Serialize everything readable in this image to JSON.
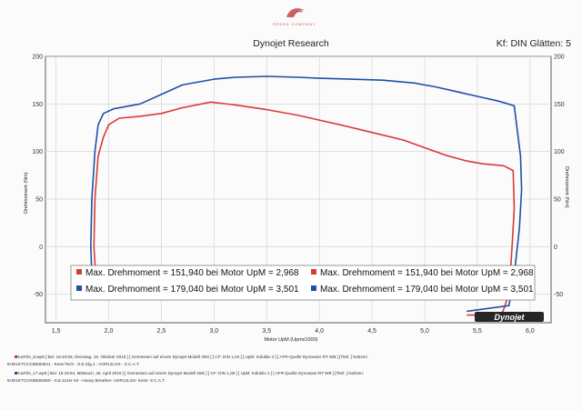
{
  "header": {
    "logo_text": "SPEED COMPANY",
    "title": "Dynojet Research",
    "smoothing": "Kf: DIN Glätten: 5"
  },
  "colors": {
    "run1": "#d83a3a",
    "run2": "#1f4fa8"
  },
  "chart_data": {
    "type": "line",
    "title": "",
    "xlabel": "Motor UpM (Upmx1000)",
    "ylabel": "Drehmoment (Nm)",
    "ylabel_right": "Drehmoment (Nm)",
    "xlim": [
      1.4,
      6.2
    ],
    "ylim": [
      -80,
      200
    ],
    "x_ticks": [
      "1,5",
      "2,0",
      "2,5",
      "3,0",
      "3,5",
      "4,0",
      "4,5",
      "5,0",
      "5,5",
      "6,0"
    ],
    "y_ticks": [
      "-50",
      "0",
      "50",
      "100",
      "150",
      "200"
    ],
    "grid": true,
    "legend_placement": "bottom-left",
    "legend": [
      {
        "series": 0,
        "text": "Max. Drehmoment = 151,940 bei Motor UpM = 2,968"
      },
      {
        "series": 1,
        "text": "Max. Drehmoment = 179,040 bei Motor UpM = 3,501"
      },
      {
        "series": 0,
        "text": "Max. Drehmoment = 151,940 bei Motor UpM = 2,968"
      },
      {
        "series": 1,
        "text": "Max. Drehmoment = 179,040 bei Motor UpM = 3,501"
      }
    ],
    "series": [
      {
        "name": "RunFile_8.wp8",
        "points": [
          [
            1.89,
            -55
          ],
          [
            1.86,
            0
          ],
          [
            1.87,
            50
          ],
          [
            1.9,
            95
          ],
          [
            1.95,
            115
          ],
          [
            2.0,
            128
          ],
          [
            2.1,
            135
          ],
          [
            2.3,
            137
          ],
          [
            2.5,
            140
          ],
          [
            2.7,
            146
          ],
          [
            2.968,
            151.9
          ],
          [
            3.2,
            149
          ],
          [
            3.5,
            144
          ],
          [
            3.8,
            138
          ],
          [
            4.0,
            133
          ],
          [
            4.2,
            128
          ],
          [
            4.5,
            120
          ],
          [
            4.8,
            112
          ],
          [
            5.0,
            104
          ],
          [
            5.2,
            96
          ],
          [
            5.4,
            90
          ],
          [
            5.55,
            87
          ],
          [
            5.75,
            85
          ],
          [
            5.84,
            80
          ],
          [
            5.85,
            40
          ],
          [
            5.83,
            0
          ],
          [
            5.8,
            -50
          ],
          [
            5.73,
            -72
          ],
          [
            5.4,
            -72
          ]
        ]
      },
      {
        "name": "RunFile_17.wp8",
        "points": [
          [
            1.85,
            -55
          ],
          [
            1.83,
            0
          ],
          [
            1.84,
            50
          ],
          [
            1.87,
            100
          ],
          [
            1.9,
            128
          ],
          [
            1.95,
            140
          ],
          [
            2.05,
            145
          ],
          [
            2.3,
            150
          ],
          [
            2.5,
            160
          ],
          [
            2.7,
            170
          ],
          [
            3.0,
            176
          ],
          [
            3.2,
            178
          ],
          [
            3.501,
            179
          ],
          [
            3.8,
            178
          ],
          [
            4.0,
            177
          ],
          [
            4.3,
            176
          ],
          [
            4.6,
            175
          ],
          [
            4.9,
            172
          ],
          [
            5.1,
            168
          ],
          [
            5.3,
            163
          ],
          [
            5.5,
            158
          ],
          [
            5.7,
            153
          ],
          [
            5.85,
            148
          ],
          [
            5.91,
            95
          ],
          [
            5.92,
            60
          ],
          [
            5.9,
            20
          ],
          [
            5.85,
            -30
          ],
          [
            5.8,
            -62
          ],
          [
            5.4,
            -68
          ]
        ]
      }
    ]
  },
  "footer": {
    "run1_line1": "RunFile_8.wp8 [ Bei: 16:40:58, Dienstag, 16. Oktober 2018 ] [ Gemessen auf einem Dynojet Modell 250i ] [ CF: DIN 1,04 ] [ UpM: Induktiv 2 ] [ AFR-Quelle Dynoware RT WB ] [Titel: ]  Notizen:",
    "run1_line2": "5HD1KTCC2JB683841 - Kess-Tech - S.E.Stg.1 - AOR12LGS - S.C.A.T.",
    "run2_line1": "RunFile_17.wp8 [ Bei: 16:19:54, Mittwoch, 25. April 2018 ] [ Gemessen auf einem Dynojet Modell 250i ] [ CF: DIN 1,05 ] [ UpM: Induktiv 2 ] [ AFR-Quelle  Dynoware RT WB ] [Titel: ]  Notizen:",
    "run2_line2": "5HD1KTCC9JB609350 - S.E.114er Kit - Heavy Breather- AOR12LGS- Kess- S.C.A.T."
  }
}
